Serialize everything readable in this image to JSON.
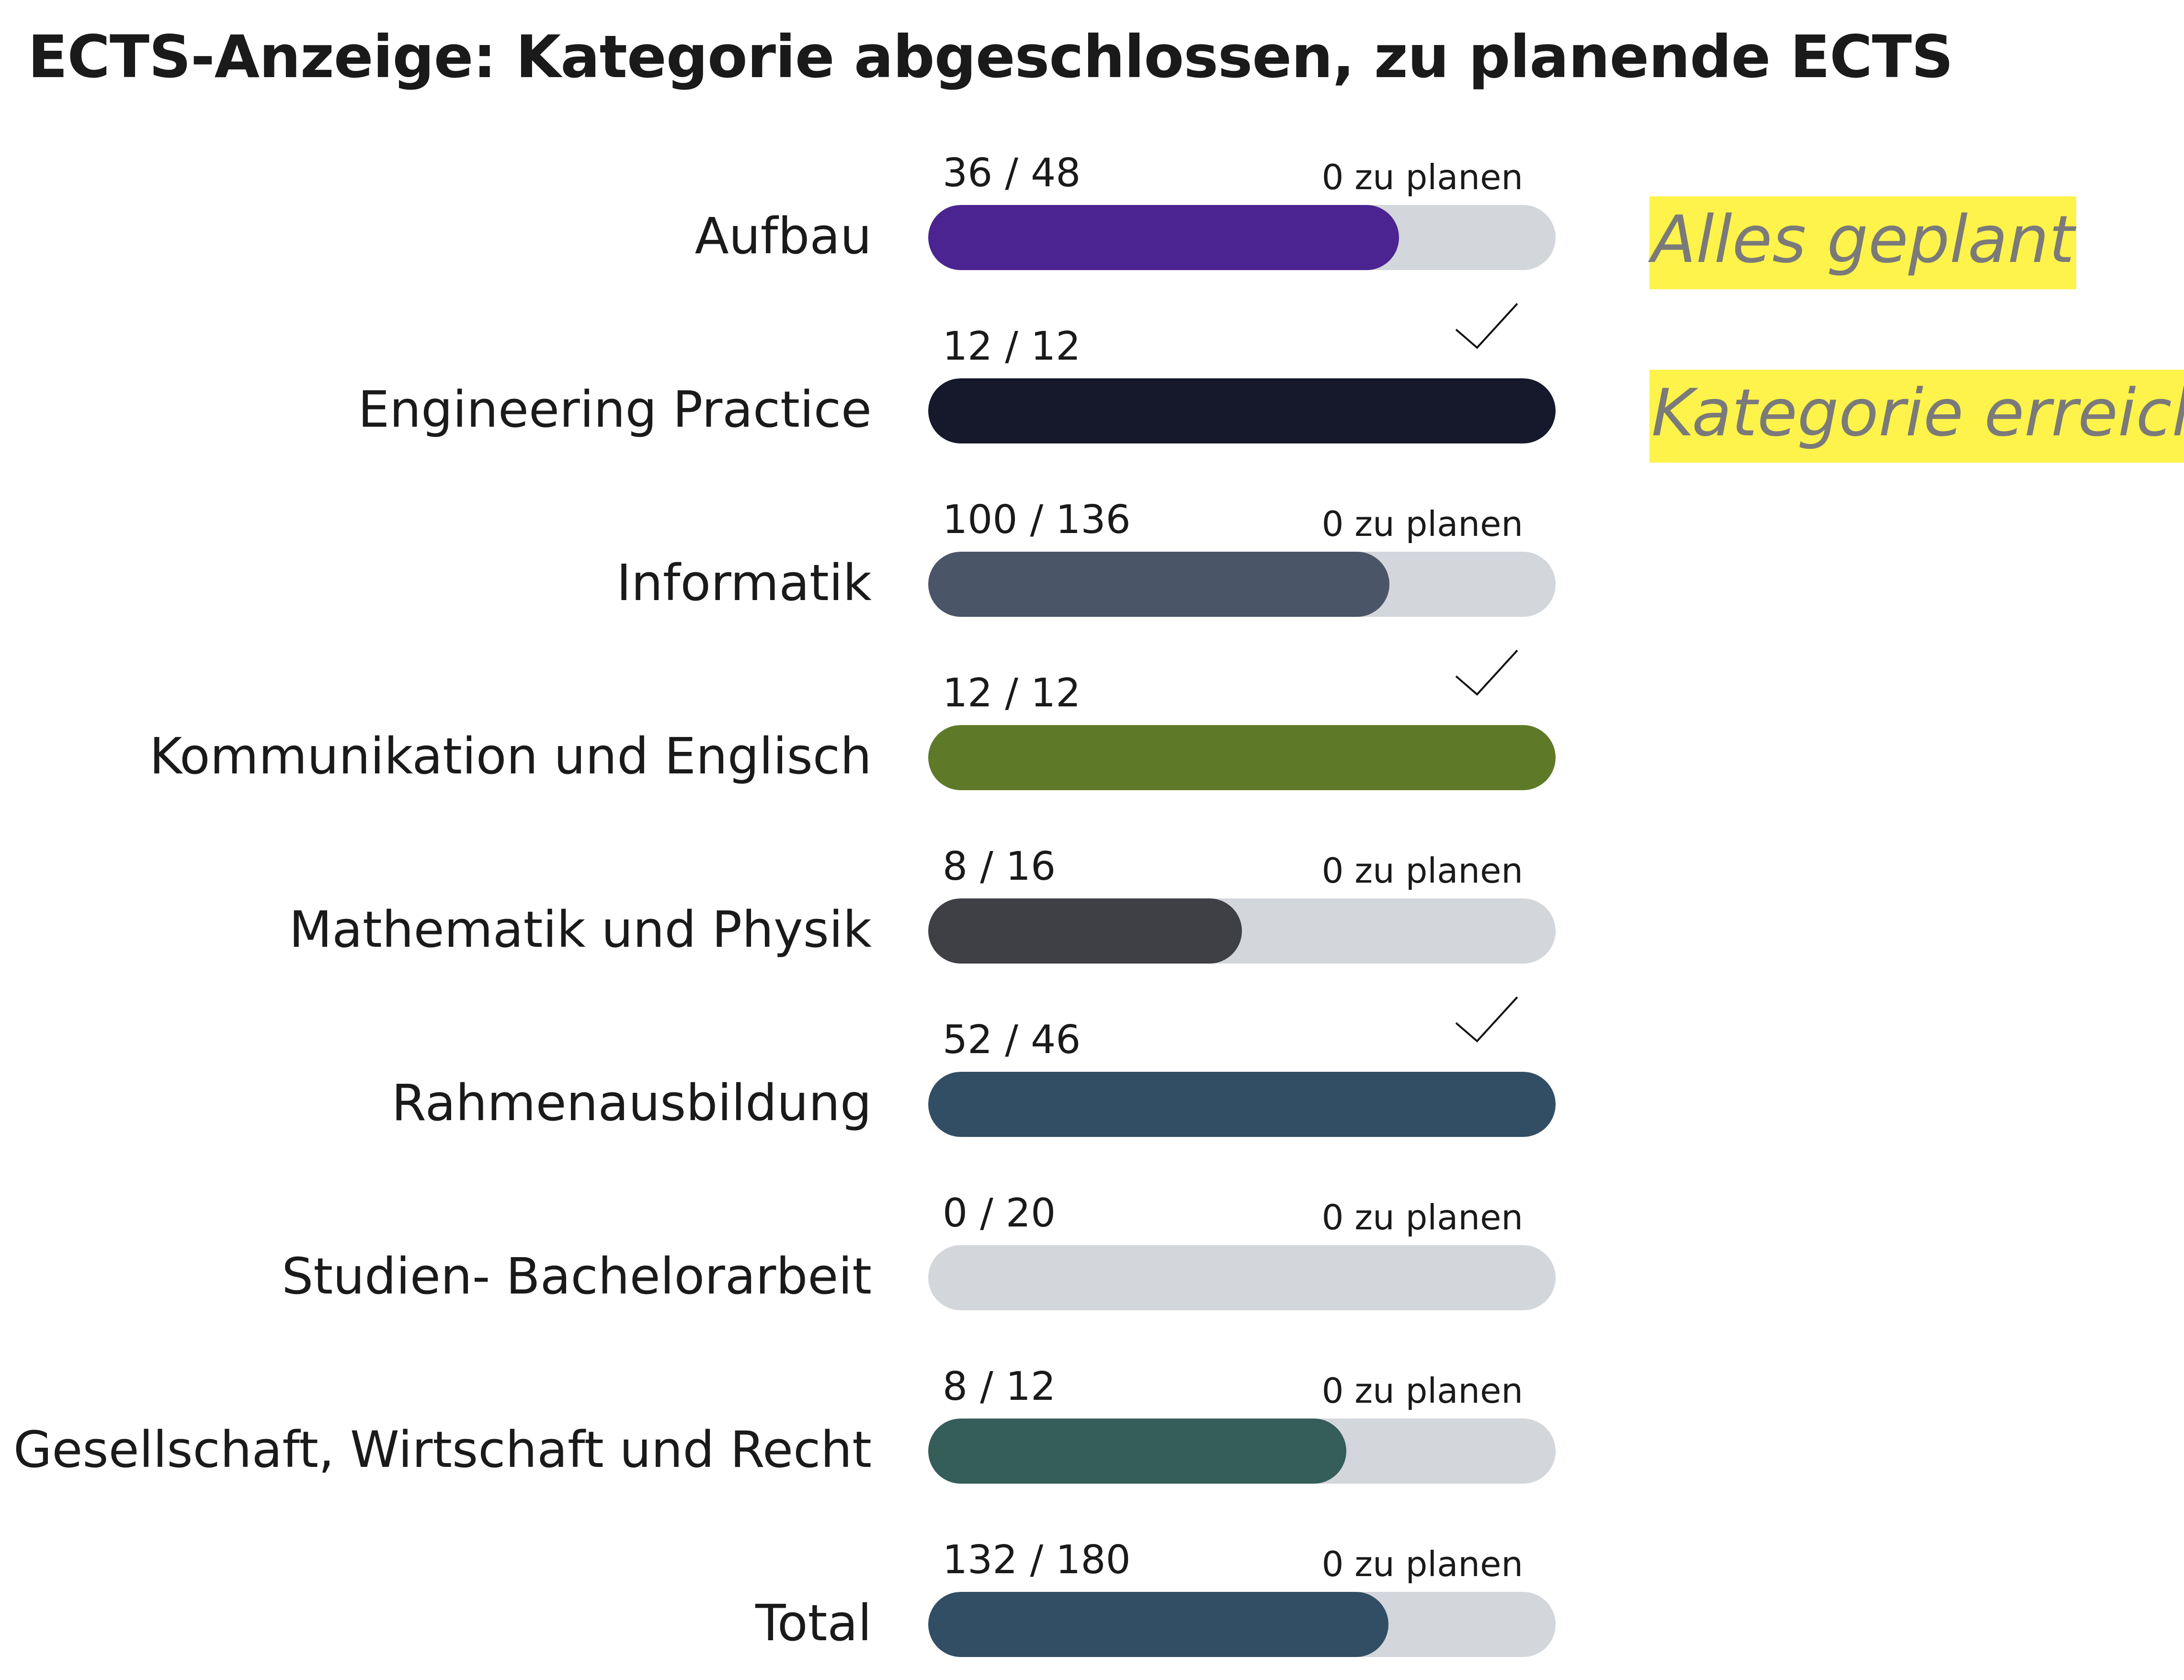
{
  "title": "ECTS-Anzeige: Kategorie abgeschlossen, zu planende ECTS",
  "legend": {
    "all_planned": "Alles geplant",
    "category_reached": "Kategorie erreicht"
  },
  "categories": [
    {
      "label": "Aufbau",
      "ratio": "36 / 48",
      "status": "0 zu planen",
      "done": false,
      "progress": 0.75,
      "color": "#4b2491"
    },
    {
      "label": "Engineering Practice",
      "ratio": "12 / 12",
      "status": "",
      "done": true,
      "progress": 1.0,
      "color": "#16182b"
    },
    {
      "label": "Informatik",
      "ratio": "100 / 136",
      "status": "0 zu planen",
      "done": false,
      "progress": 0.7353,
      "color": "#4b5568"
    },
    {
      "label": "Kommunikation und Englisch",
      "ratio": "12 / 12",
      "status": "",
      "done": true,
      "progress": 1.0,
      "color": "#5e7a29"
    },
    {
      "label": "Mathematik und Physik",
      "ratio": "8 / 16",
      "status": "0 zu planen",
      "done": false,
      "progress": 0.5,
      "color": "#3f3f46"
    },
    {
      "label": "Rahmenausbildung",
      "ratio": "52 / 46",
      "status": "",
      "done": true,
      "progress": 1.0,
      "color": "#324e64"
    },
    {
      "label": "Studien- Bachelorarbeit",
      "ratio": "0 / 20",
      "status": "0 zu planen",
      "done": false,
      "progress": 0.0,
      "color": "#324e64"
    },
    {
      "label": "Gesellschaft, Wirtschaft und Recht",
      "ratio": "8 / 12",
      "status": "0 zu planen",
      "done": false,
      "progress": 0.6667,
      "color": "#355d59"
    },
    {
      "label": "Total",
      "ratio": "132 / 180",
      "status": "0 zu planen",
      "done": false,
      "progress": 0.7333,
      "color": "#324e64"
    }
  ]
}
